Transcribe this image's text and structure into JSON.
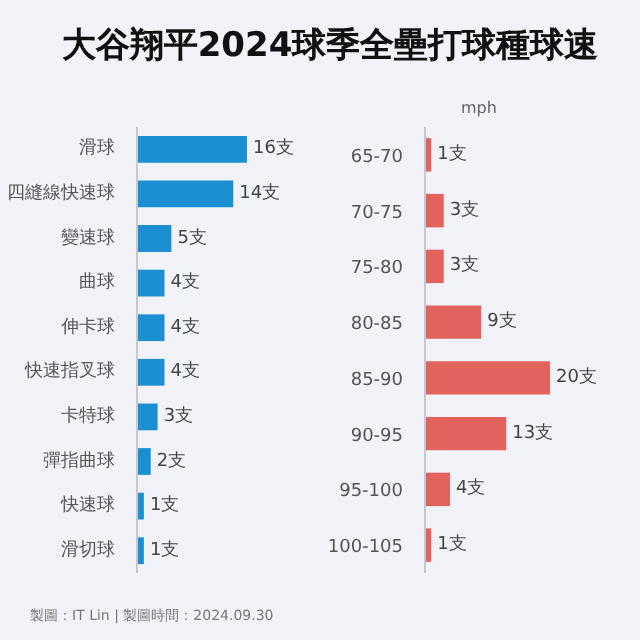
{
  "chart_data": [
    {
      "type": "bar",
      "orientation": "horizontal",
      "title": "大谷翔平2024球季全壘打球種球速",
      "categories": [
        "滑球",
        "四縫線快速球",
        "變速球",
        "曲球",
        "伸卡球",
        "快速指叉球",
        "卡特球",
        "彈指曲球",
        "快速球",
        "滑切球"
      ],
      "values": [
        16,
        14,
        5,
        4,
        4,
        4,
        3,
        2,
        1,
        1
      ],
      "value_labels": [
        "16支",
        "14支",
        "5支",
        "4支",
        "4支",
        "4支",
        "3支",
        "2支",
        "1支",
        "1支"
      ],
      "color": "#1b8fd2",
      "tick_labels": "y"
    },
    {
      "type": "bar",
      "orientation": "horizontal",
      "ylabel": "mph",
      "categories": [
        "65-70",
        "70-75",
        "75-80",
        "80-85",
        "85-90",
        "90-95",
        "95-100",
        "100-105"
      ],
      "values": [
        1,
        3,
        3,
        9,
        20,
        13,
        4,
        1
      ],
      "value_labels": [
        "1支",
        "3支",
        "3支",
        "9支",
        "20支",
        "13支",
        "4支",
        "1支"
      ],
      "color": "#e2625e",
      "tick_labels": "y",
      "annotations": [
        "製圖：IT Lin | 製圖時間：2024.09.30"
      ]
    }
  ]
}
